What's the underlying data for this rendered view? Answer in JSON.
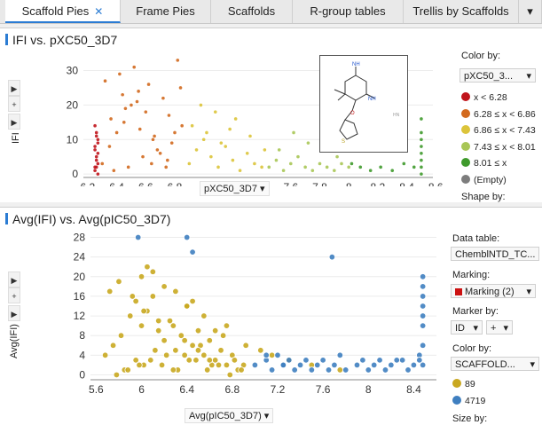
{
  "tabs": [
    {
      "label": "Scaffold Pies",
      "active": true,
      "close": "✕"
    },
    {
      "label": "Frame Pies"
    },
    {
      "label": "Scaffolds"
    },
    {
      "label": "R-group tables"
    },
    {
      "label": "Trellis by Scaffolds"
    }
  ],
  "top_panel": {
    "title": "IFI vs. pXC50_3D7",
    "y_axis_label": "IFI",
    "x_axis_selector": "pXC50_3D7",
    "legend": {
      "title": "Color by:",
      "selector": "pXC50_3...",
      "items": [
        {
          "label": "x < 6.28",
          "color": "#c0141b"
        },
        {
          "label": "6.28 ≤ x < 6.86",
          "color": "#d2691e"
        },
        {
          "label": "6.86 ≤ x < 7.43",
          "color": "#dcc43a"
        },
        {
          "label": "7.43 ≤ x < 8.01",
          "color": "#a8c656"
        },
        {
          "label": "8.01 ≤ x",
          "color": "#3f9a2c"
        },
        {
          "label": "(Empty)",
          "color": "#7d7d7d"
        }
      ],
      "shape_label": "Shape by:"
    }
  },
  "bottom_panel": {
    "title": "Avg(IFI) vs. Avg(pIC50_3D7)",
    "y_axis_label": "Avg(IFI)",
    "x_axis_selector": "Avg(pIC50_3D7)",
    "sidebar": {
      "data_table_label": "Data table:",
      "data_table_value": "ChemblNTD_TC...",
      "marking_label": "Marking:",
      "marking_value": "Marking (2)",
      "marking_color": "#cc1111",
      "marker_label": "Marker by:",
      "marker_value": "ID",
      "marker_plus": "+",
      "color_label": "Color by:",
      "color_value": "SCAFFOLD...",
      "items": [
        {
          "label": "89",
          "color": "#c9a820"
        },
        {
          "label": "4719",
          "color": "#3f7fc0"
        }
      ],
      "size_label": "Size by:"
    }
  },
  "chart_data": [
    {
      "type": "scatter",
      "title": "IFI vs. pXC50_3D7",
      "xlabel": "pXC50_3D7",
      "ylabel": "IFI",
      "xlim": [
        6.17,
        8.58
      ],
      "ylim": [
        -1,
        34
      ],
      "xticks": [
        6.2,
        6.4,
        6.6,
        6.8,
        7,
        7.2,
        7.4,
        7.6,
        7.8,
        8,
        8.2,
        8.4,
        8.6
      ],
      "yticks": [
        0,
        10,
        20,
        30
      ],
      "series": [
        {
          "name": "x < 6.28",
          "color": "#c0141b",
          "x": [
            6.25,
            6.26,
            6.26,
            6.27,
            6.25,
            6.27,
            6.26,
            6.25,
            6.27,
            6.26,
            6.25,
            6.27,
            6.26,
            6.27,
            6.25
          ],
          "y": [
            1,
            2,
            4,
            6,
            8,
            10,
            12,
            14,
            3,
            5,
            7,
            9,
            11,
            0,
            2
          ]
        },
        {
          "name": "6.28 ≤ x < 6.86",
          "color": "#d2691e",
          "x": [
            6.3,
            6.35,
            6.4,
            6.45,
            6.5,
            6.55,
            6.6,
            6.65,
            6.7,
            6.75,
            6.8,
            6.85,
            6.32,
            6.42,
            6.52,
            6.62,
            6.72,
            6.82,
            6.38,
            6.48,
            6.58,
            6.68,
            6.78,
            6.36,
            6.46,
            6.56,
            6.66,
            6.76,
            6.84,
            6.44,
            6.54,
            6.64,
            6.74
          ],
          "y": [
            3,
            8,
            12,
            15,
            20,
            24,
            18,
            10,
            6,
            4,
            12,
            14,
            27,
            29,
            31,
            26,
            22,
            33,
            1,
            2,
            5,
            7,
            9,
            16,
            19,
            13,
            11,
            17,
            25,
            23,
            21,
            3,
            2
          ]
        },
        {
          "name": "6.86 ≤ x < 7.43",
          "color": "#dcc43a",
          "x": [
            6.9,
            6.95,
            7.0,
            7.05,
            7.1,
            7.15,
            7.2,
            7.25,
            7.3,
            7.35,
            7.4,
            6.92,
            7.02,
            7.12,
            7.22,
            7.32,
            7.42,
            6.98,
            7.08,
            7.18
          ],
          "y": [
            3,
            7,
            10,
            5,
            2,
            8,
            4,
            1,
            6,
            3,
            2,
            14,
            12,
            9,
            16,
            11,
            7,
            20,
            18,
            13
          ]
        },
        {
          "name": "7.43 ≤ x < 8.01",
          "color": "#a8c656",
          "x": [
            7.45,
            7.5,
            7.55,
            7.6,
            7.65,
            7.7,
            7.75,
            7.8,
            7.85,
            7.9,
            7.95,
            8.0,
            7.52,
            7.62,
            7.72,
            7.82,
            7.92
          ],
          "y": [
            2,
            4,
            1,
            3,
            5,
            2,
            1,
            3,
            2,
            1,
            3,
            2,
            7,
            12,
            9,
            14,
            5
          ]
        },
        {
          "name": "8.01 ≤ x",
          "color": "#3f9a2c",
          "x": [
            8.02,
            8.08,
            8.15,
            8.22,
            8.3,
            8.38,
            8.45,
            8.5,
            8.5,
            8.5,
            8.5,
            8.5,
            8.5,
            8.5,
            8.5
          ],
          "y": [
            3,
            2,
            1,
            2,
            1,
            3,
            2,
            0,
            2,
            4,
            6,
            8,
            10,
            12,
            16
          ]
        }
      ]
    },
    {
      "type": "scatter",
      "title": "Avg(IFI) vs. Avg(pIC50_3D7)",
      "xlabel": "Avg(pIC50_3D7)",
      "ylabel": "Avg(IFI)",
      "xlim": [
        5.55,
        8.6
      ],
      "ylim": [
        -1,
        29
      ],
      "xticks": [
        5.6,
        6,
        6.4,
        6.8,
        7.2,
        7.6,
        8,
        8.4
      ],
      "yticks": [
        0,
        4,
        8,
        12,
        16,
        20,
        24,
        28
      ],
      "series": [
        {
          "name": "89",
          "color": "#c9a820",
          "x": [
            5.68,
            5.75,
            5.82,
            5.9,
            5.95,
            6.0,
            6.05,
            6.1,
            6.15,
            6.2,
            6.25,
            6.3,
            6.35,
            6.4,
            6.45,
            6.5,
            6.55,
            6.6,
            6.65,
            6.7,
            6.75,
            6.8,
            6.85,
            6.9,
            5.85,
            5.95,
            6.02,
            6.12,
            6.22,
            6.32,
            6.42,
            6.52,
            6.62,
            6.72,
            6.82,
            5.78,
            5.88,
            5.98,
            6.08,
            6.18,
            6.28,
            6.38,
            6.48,
            6.58,
            6.68,
            6.78,
            6.88,
            5.72,
            6.0,
            6.05,
            6.1,
            6.2,
            6.3,
            6.4,
            6.45,
            6.55,
            6.65,
            6.75,
            6.92,
            7.05,
            7.15,
            7.3,
            7.5,
            7.75,
            5.8,
            5.92,
            6.02,
            6.15,
            6.28,
            6.38,
            6.5,
            6.6
          ],
          "y": [
            4,
            6,
            8,
            12,
            15,
            10,
            13,
            16,
            9,
            7,
            11,
            5,
            8,
            14,
            6,
            9,
            4,
            7,
            3,
            5,
            2,
            4,
            1,
            2,
            1,
            3,
            2,
            5,
            4,
            1,
            3,
            6,
            2,
            8,
            3,
            0,
            1,
            2,
            3,
            2,
            1,
            4,
            3,
            1,
            2,
            0,
            1,
            17,
            20,
            22,
            21,
            18,
            17,
            14,
            15,
            12,
            9,
            10,
            6,
            5,
            4,
            3,
            2,
            1,
            19,
            16,
            13,
            11,
            10,
            7,
            5,
            3
          ]
        },
        {
          "name": "4719",
          "color": "#3f7fc0",
          "x": [
            5.97,
            6.4,
            6.45,
            7.0,
            7.1,
            7.15,
            7.2,
            7.25,
            7.3,
            7.35,
            7.4,
            7.45,
            7.5,
            7.55,
            7.6,
            7.65,
            7.7,
            7.75,
            7.9,
            7.95,
            8.0,
            8.05,
            8.1,
            8.15,
            8.2,
            8.3,
            8.35,
            8.4,
            8.45,
            8.48,
            8.48,
            8.48,
            8.48,
            8.48,
            8.48,
            8.48,
            8.48,
            7.68,
            7.25,
            7.1,
            7.8,
            8.25,
            8.45
          ],
          "y": [
            28,
            28,
            25,
            2,
            3,
            1,
            4,
            2,
            3,
            1,
            2,
            3,
            1,
            2,
            3,
            1,
            2,
            4,
            2,
            3,
            1,
            2,
            3,
            1,
            2,
            3,
            1,
            2,
            4,
            6,
            10,
            12,
            14,
            16,
            18,
            20,
            2,
            24,
            2,
            4,
            1,
            3,
            3
          ]
        }
      ]
    }
  ],
  "structure_popup": {
    "label": "HN"
  }
}
